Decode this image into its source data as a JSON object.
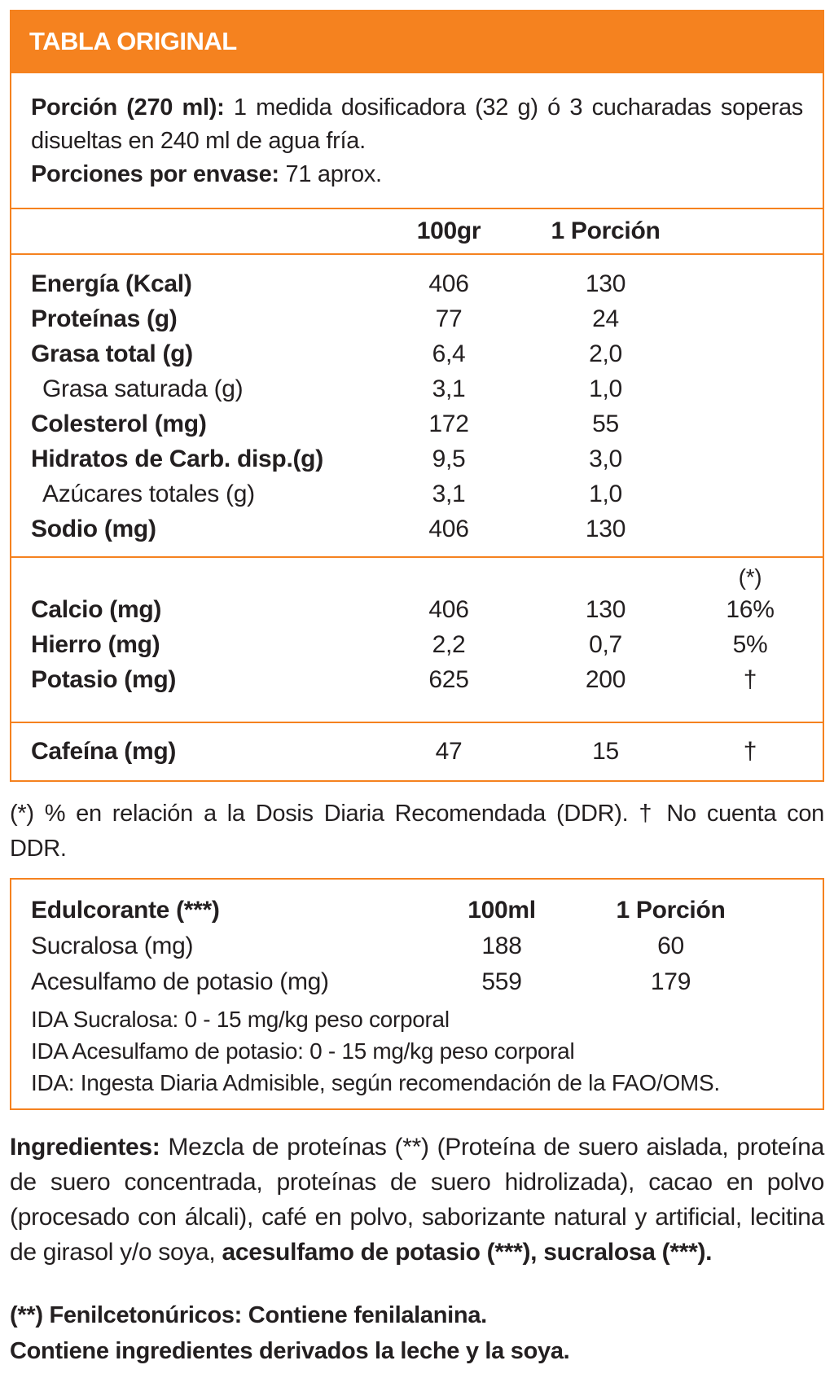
{
  "colors": {
    "accent_orange": "#f5821f",
    "text": "#231f20",
    "header_text": "#ffffff"
  },
  "header": {
    "title": "TABLA ORIGINAL"
  },
  "serving": {
    "line1_segments": [
      {
        "text": "Porción (270 ml): ",
        "bold": true
      },
      {
        "text": "1 medida dosificadora (32 g) ó 3 cucharadas soperas disueltas en 240 ml de agua fría.",
        "bold": false
      }
    ],
    "line2_segments": [
      {
        "text": "Porciones por envase: ",
        "bold": true
      },
      {
        "text": "71 aprox.",
        "bold": false
      }
    ]
  },
  "table1": {
    "col1_header": "100gr",
    "col2_header": "1 Porción",
    "rows": [
      {
        "label": "Energía (Kcal)",
        "v100": "406",
        "vporcion": "130"
      },
      {
        "label": "Proteínas (g)",
        "v100": "77",
        "vporcion": "24"
      },
      {
        "label": "Grasa total (g)",
        "v100": "6,4",
        "vporcion": "2,0"
      },
      {
        "label": "Grasa saturada (g)",
        "v100": "3,1",
        "vporcion": "1,0"
      },
      {
        "label": "Colesterol (mg)",
        "v100": "172",
        "vporcion": "55"
      },
      {
        "label": "Hidratos de Carb. disp.(g)",
        "v100": "9,5",
        "vporcion": "3,0"
      },
      {
        "label": "Azúcares totales (g)",
        "v100": "3,1",
        "vporcion": "1,0"
      },
      {
        "label": "Sodio (mg)",
        "v100": "406",
        "vporcion": "130"
      }
    ],
    "ddr_header": "(*)",
    "minerals": [
      {
        "label": "Calcio (mg)",
        "v100": "406",
        "vporcion": "130",
        "ddr": "16%"
      },
      {
        "label": "Hierro (mg)",
        "v100": "2,2",
        "vporcion": "0,7",
        "ddr": "5%"
      },
      {
        "label": "Potasio (mg)",
        "v100": "625",
        "vporcion": "200",
        "ddr": "†"
      }
    ],
    "caffeine": {
      "label": "Cafeína (mg)",
      "v100": "47",
      "vporcion": "15",
      "ddr": "†"
    }
  },
  "footnote": "(*) % en relación a la Dosis Diaria Recomendada (DDR).  † No cuenta con DDR.",
  "table2": {
    "header_label": "Edulcorante (***)",
    "col1_header": "100ml",
    "col2_header": "1 Porción",
    "rows": [
      {
        "label": "Sucralosa (mg)",
        "v100": "188",
        "vporcion": "60"
      },
      {
        "label": "Acesulfamo de potasio (mg)",
        "v100": "559",
        "vporcion": "179"
      }
    ],
    "ida_lines": [
      "IDA Sucralosa: 0 - 15 mg/kg peso corporal",
      "IDA Acesulfamo de potasio: 0 - 15 mg/kg peso corporal",
      "IDA: Ingesta Diaria Admisible, según recomendación de la FAO/OMS."
    ]
  },
  "ingredients_segments": [
    {
      "text": "Ingredientes: ",
      "bold": true
    },
    {
      "text": "Mezcla de proteínas (**) (Proteína de suero aislada, proteína de suero concentrada, proteínas de suero hidrolizada), cacao en polvo (procesado con álcali), café en polvo, saborizante natural y artificial, lecitina de girasol y/o soya, ",
      "bold": false
    },
    {
      "text": "acesulfamo de potasio (***), sucralosa (***).",
      "bold": true
    }
  ],
  "warnings": {
    "line1": "(**) Fenilcetonúricos: Contiene fenilalanina.",
    "line2": "Contiene ingredientes derivados la leche y la soya."
  }
}
